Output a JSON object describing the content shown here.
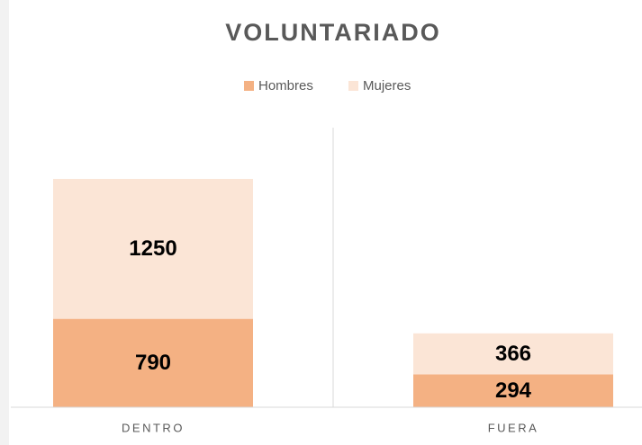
{
  "chart_data": {
    "type": "stacked_bar",
    "title": "VOLUNTARIADO",
    "categories": [
      "DENTRO",
      "FUERA"
    ],
    "series": [
      {
        "name": "Hombres",
        "color": "#f4b183",
        "values": [
          790,
          294
        ]
      },
      {
        "name": "Mujeres",
        "color": "#fbe5d6",
        "values": [
          1250,
          366
        ]
      }
    ],
    "legend": "top"
  }
}
